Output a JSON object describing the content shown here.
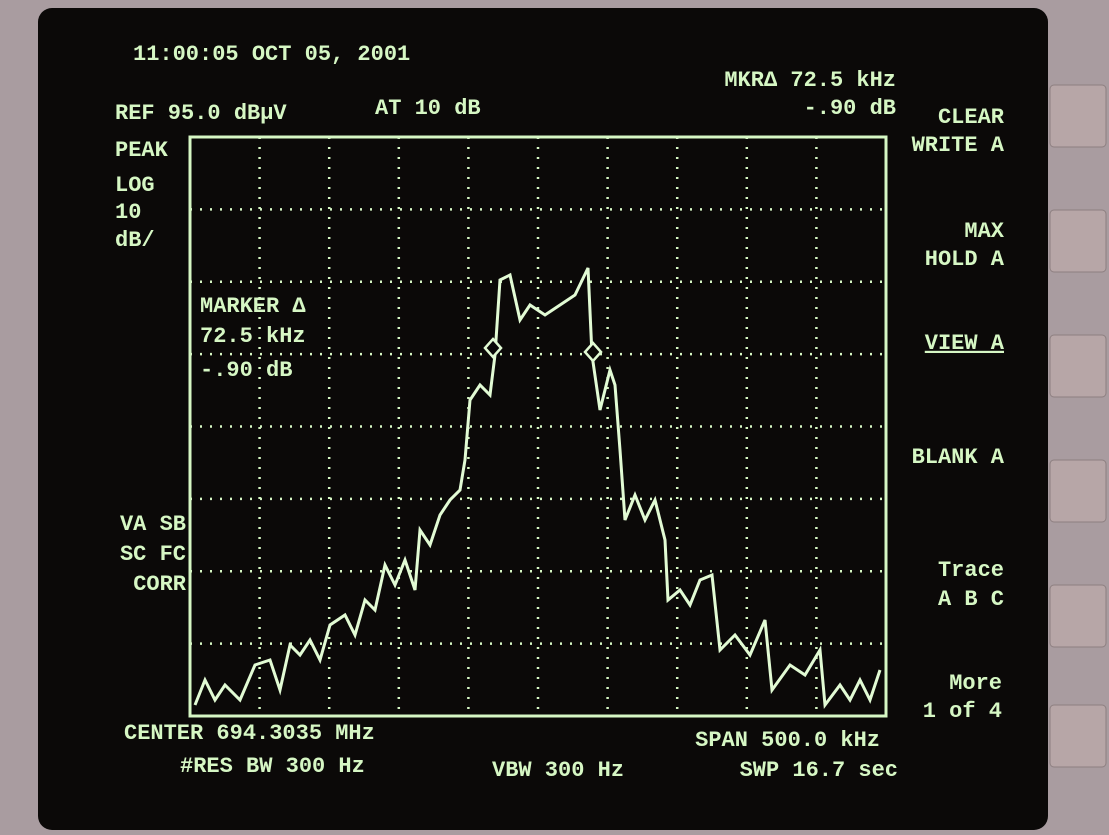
{
  "header": {
    "timestamp": "11:00:05 OCT 05, 2001",
    "reference": "REF 95.0 dBµV",
    "attenuation": "AT 10 dB",
    "marker_frequency": "MKR∆ 72.5 kHz",
    "marker_amplitude": "-.90 dB"
  },
  "scale": [
    "PEAK",
    "LOG",
    "10",
    "dB/"
  ],
  "marker_box": [
    "MARKER ∆",
    "72.5 kHz",
    "-.90 dB"
  ],
  "status": [
    "VA SB",
    "SC FC",
    "CORR"
  ],
  "footer": {
    "center": "CENTER 694.3035 MHz",
    "resolution_bandwidth": "#RES BW 300 Hz",
    "video_bandwidth": "VBW 300 Hz",
    "span": "SPAN 500.0 kHz",
    "sweep": "SWP 16.7  sec"
  },
  "softkeys": [
    [
      "CLEAR",
      "WRITE A"
    ],
    [
      "MAX",
      "HOLD A"
    ],
    [
      "VIEW A"
    ],
    [
      "BLANK A"
    ],
    [
      "Trace",
      "A  B  C"
    ],
    [
      "More",
      "1 of 4"
    ]
  ]
}
